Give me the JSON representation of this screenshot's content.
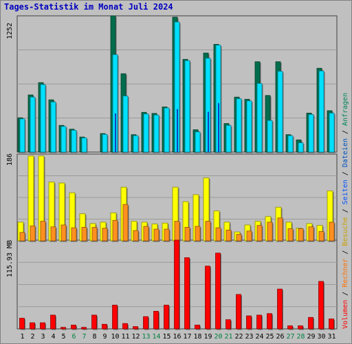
{
  "chart_data": [
    {
      "type": "bar",
      "title": "Tages-Statistik im Monat Juli 2024",
      "y_max_label": "1252",
      "categories": [
        "1",
        "2",
        "3",
        "4",
        "5",
        "6",
        "7",
        "8",
        "9",
        "10",
        "11",
        "12",
        "13",
        "14",
        "15",
        "16",
        "17",
        "18",
        "19",
        "20",
        "21",
        "22",
        "23",
        "24",
        "25",
        "26",
        "27",
        "28",
        "29",
        "30",
        "31"
      ],
      "weekend_categories": [
        "6",
        "7",
        "13",
        "14",
        "20",
        "21",
        "27",
        "28"
      ],
      "ylim": [
        0,
        1252
      ],
      "series": [
        {
          "name": "Anfragen",
          "color": "#006d4d",
          "values": [
            315,
            525,
            638,
            480,
            245,
            210,
            138,
            0,
            170,
            1252,
            720,
            160,
            365,
            355,
            415,
            1240,
            852,
            205,
            910,
            990,
            262,
            505,
            485,
            830,
            520,
            830,
            160,
            112,
            358,
            770,
            380
          ]
        },
        {
          "name": "Dateien",
          "color": "#00e0ff",
          "values": [
            305,
            505,
            620,
            460,
            235,
            200,
            130,
            0,
            162,
            895,
            515,
            150,
            350,
            340,
            405,
            1195,
            840,
            185,
            862,
            982,
            245,
            490,
            470,
            630,
            290,
            742,
            150,
            85,
            345,
            745,
            358
          ]
        }
      ],
      "inner_series": [
        {
          "name": "Seiten",
          "color": "#1040c0",
          "values": [
            0,
            0,
            0,
            0,
            0,
            0,
            0,
            0,
            0,
            355,
            0,
            0,
            0,
            0,
            0,
            395,
            0,
            0,
            370,
            450,
            0,
            0,
            0,
            0,
            0,
            0,
            0,
            0,
            0,
            0,
            0
          ]
        }
      ]
    },
    {
      "type": "bar",
      "y_max_label": "186",
      "ylim": [
        0,
        186
      ],
      "series": [
        {
          "name": "Besuche",
          "color": "#ffff00",
          "values": [
            40,
            182,
            182,
            126,
            124,
            103,
            58,
            37,
            40,
            60,
            115,
            42,
            40,
            36,
            38,
            115,
            84,
            99,
            135,
            64,
            40,
            19,
            34,
            42,
            52,
            72,
            40,
            27,
            37,
            33,
            107
          ]
        },
        {
          "name": "Rechner",
          "color": "#ff9020",
          "values": [
            18,
            32,
            42,
            30,
            34,
            28,
            29,
            29,
            27,
            44,
            78,
            22,
            31,
            25,
            25,
            42,
            29,
            31,
            42,
            28,
            23,
            14,
            21,
            33,
            40,
            49,
            26,
            26,
            30,
            20,
            40
          ]
        }
      ]
    },
    {
      "type": "bar",
      "y_max_label": "115.93 MB",
      "ylim": [
        0,
        115.93
      ],
      "series": [
        {
          "name": "Volumen",
          "color": "#ff0000",
          "values": [
            14,
            8,
            8,
            18,
            2,
            5,
            2,
            18,
            6,
            31,
            7,
            3,
            16,
            23,
            31,
            115.93,
            93,
            5,
            82,
            99,
            12,
            45,
            17,
            18,
            20,
            52,
            4,
            4,
            15,
            62,
            13
          ]
        }
      ]
    }
  ],
  "legend": {
    "parts": [
      {
        "text": "Volumen",
        "color": "#ff0000"
      },
      {
        "text": " / ",
        "color": "#000000"
      },
      {
        "text": "Rechner",
        "color": "#ff7000"
      },
      {
        "text": " / ",
        "color": "#000000"
      },
      {
        "text": "Besuche",
        "color": "#c8a000"
      },
      {
        "text": " / ",
        "color": "#000000"
      },
      {
        "text": "Seiten",
        "color": "#0050ff"
      },
      {
        "text": " / ",
        "color": "#000000"
      },
      {
        "text": "Dateien",
        "color": "#0050c0"
      },
      {
        "text": " / ",
        "color": "#000000"
      },
      {
        "text": "Anfragen",
        "color": "#00855a"
      }
    ]
  },
  "colors": {
    "panel_background": "#c0c0c0",
    "grid": "#9a9a9a",
    "title": "#0000c0",
    "weekday_label": "#000000",
    "weekend_label": "#008040"
  }
}
